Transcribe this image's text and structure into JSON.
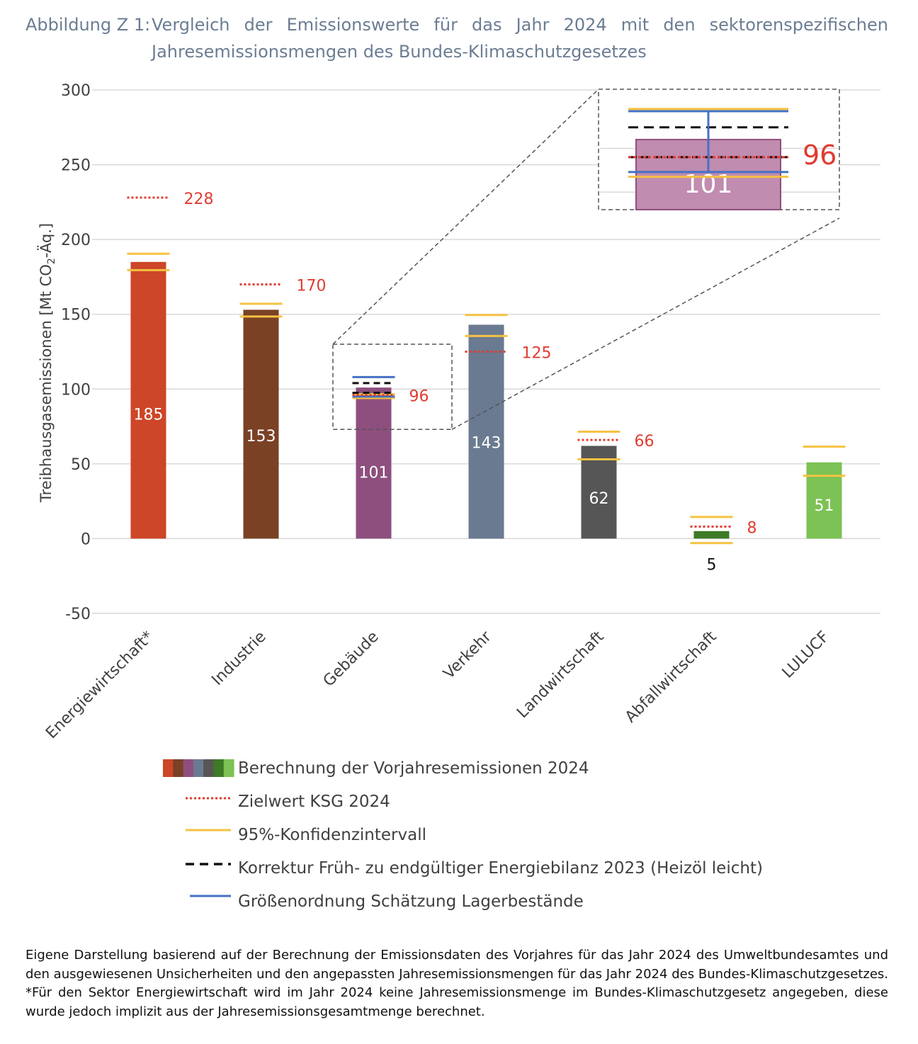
{
  "title": {
    "label": "Abbildung Z 1:",
    "text": "Vergleich der Emissionswerte für das Jahr 2024 mit den sektorenspezifischen Jahresemissionsmengen des Bundes-Klimaschutzgesetzes"
  },
  "caption": "Eigene Darstellung basierend auf der Berechnung der Emissionsdaten des Vorjahres für das Jahr 2024 des Umweltbundesamtes und den ausgewiesenen Unsicherheiten und den angepassten Jahresemissionsmengen für das Jahr 2024 des Bundes-Klimaschutzgesetzes. *Für den Sektor Energiewirtschaft wird im Jahr 2024 keine Jahresemissionsmenge im Bundes-Klimaschutzgesetz angegeben, diese wurde jedoch implizit aus der Jahresemissionsgesamtmenge berechnet.",
  "chart_data": {
    "type": "bar",
    "ylabel": "Treibhausgasemissionen  [Mt CO2-Äq.]",
    "ylabel_parts": [
      "Treibhausgasemissionen  [Mt CO",
      "2",
      "-Äq.]"
    ],
    "ylim": [
      -50,
      300
    ],
    "yticks": [
      300,
      250,
      200,
      150,
      100,
      50,
      0,
      -50
    ],
    "grid": true,
    "legend_position": "bottom",
    "categories": [
      "Energiewirtschaft*",
      "Industrie",
      "Gebäude",
      "Verkehr",
      "Landwirtschaft",
      "Abfallwirtschaft",
      "LULUCF"
    ],
    "series": [
      {
        "name": "Berechnung der Vorjahresemissionen 2024",
        "values": [
          185,
          153,
          101,
          143,
          62,
          5,
          51
        ],
        "colors": [
          "#cd4627",
          "#7a4125",
          "#8e4f7e",
          "#6a7a90",
          "#565656",
          "#3d7a26",
          "#7cc254"
        ]
      },
      {
        "name": "Zielwert KSG 2024",
        "values": [
          228,
          170,
          96,
          125,
          66,
          8,
          null
        ],
        "color": "#e03c31"
      },
      {
        "name": "95%-Konfidenzintervall",
        "lower": [
          179.5,
          148.5,
          94,
          135.5,
          53,
          -3,
          42
        ],
        "upper": [
          190.5,
          157,
          96.5,
          149.5,
          71.5,
          14.5,
          61.5
        ],
        "color": "#f5c242"
      },
      {
        "name": "Korrektur Früh- zu endgültiger Energiebilanz 2023 (Heizöl leicht)",
        "values": [
          null,
          null,
          104,
          null,
          null,
          null,
          null
        ],
        "values_2": [
          null,
          null,
          97.5,
          null,
          null,
          null,
          null
        ],
        "color": "#111111"
      },
      {
        "name": "Größenordnung Schätzung Lagerbestände",
        "lower": [
          null,
          null,
          95,
          null,
          null,
          null,
          null
        ],
        "upper": [
          null,
          null,
          108,
          null,
          null,
          null,
          null
        ],
        "color": "#4472c4"
      }
    ],
    "target_labels": [
      "228",
      "170",
      "96",
      "125",
      "66",
      "8",
      ""
    ],
    "value_labels": [
      "185",
      "153",
      "101",
      "143",
      "62",
      "5",
      "51"
    ],
    "inset": {
      "category": "Gebäude",
      "value_label": "101",
      "target_label": "96",
      "range": [
        92,
        109
      ]
    }
  }
}
